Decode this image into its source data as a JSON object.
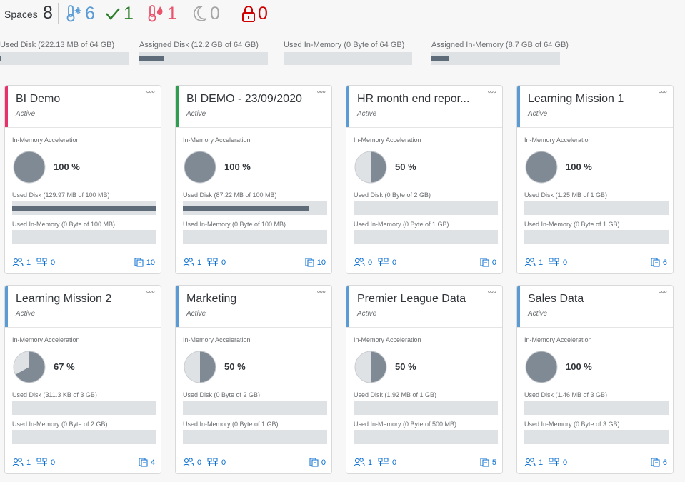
{
  "header": {
    "spaces_label": "Spaces",
    "spaces_count": "8",
    "stats": [
      {
        "icon": "cold-space-icon",
        "value": "6",
        "color": "#5b9bd5"
      },
      {
        "icon": "checkmark-icon",
        "value": "1",
        "color": "#2b7d2b"
      },
      {
        "icon": "hot-space-icon",
        "value": "1",
        "color": "#e9536b"
      },
      {
        "icon": "moon-icon",
        "value": "0",
        "color": "#a6a6a6"
      },
      {
        "icon": "lock-icon",
        "value": "0",
        "color": "#d00000"
      }
    ]
  },
  "summary": {
    "used_disk": "Used Disk (222.13 MB of 64 GB)",
    "used_disk_fraction": 0.003,
    "assigned_disk": "Assigned Disk (12.2 GB of 64 GB)",
    "assigned_disk_fraction": 0.19,
    "used_in_memory": "Used In-Memory (0 Byte of 64 GB)",
    "used_in_memory_fraction": 0,
    "assigned_in_memory": "Assigned In-Memory (8.7 GB of 64 GB)",
    "assigned_in_memory_fraction": 0.136
  },
  "labels": {
    "in_memory_acceleration": "In-Memory Acceleration"
  },
  "cards": [
    {
      "title": "BI Demo",
      "status": "Active",
      "accent": "#e9306b",
      "percent": "100 %",
      "fraction": 1.0,
      "used_disk": "Used Disk (129.97 MB of 100 MB)",
      "disk_fraction": 1.0,
      "used_memory": "Used In-Memory (0 Byte of 100 MB)",
      "memory_fraction": 0,
      "users": "1",
      "connections": "0",
      "objects": "10"
    },
    {
      "title": "BI DEMO - 23/09/2020",
      "status": "Active",
      "accent": "#2e9d4f",
      "percent": "100 %",
      "fraction": 1.0,
      "used_disk": "Used Disk (87.22 MB of 100 MB)",
      "disk_fraction": 0.872,
      "used_memory": "Used In-Memory (0 Byte of 100 MB)",
      "memory_fraction": 0,
      "users": "1",
      "connections": "0",
      "objects": "10"
    },
    {
      "title": "HR month end repor...",
      "status": "Active",
      "accent": "#5b9bd5",
      "percent": "50 %",
      "fraction": 0.5,
      "used_disk": "Used Disk (0 Byte of 2 GB)",
      "disk_fraction": 0,
      "used_memory": "Used In-Memory (0 Byte of 1 GB)",
      "memory_fraction": 0,
      "users": "0",
      "connections": "0",
      "objects": "0"
    },
    {
      "title": "Learning Mission 1",
      "status": "Active",
      "accent": "#5b9bd5",
      "percent": "100 %",
      "fraction": 1.0,
      "used_disk": "Used Disk (1.25 MB of 1 GB)",
      "disk_fraction": 0,
      "used_memory": "Used In-Memory (0 Byte of 1 GB)",
      "memory_fraction": 0,
      "users": "1",
      "connections": "0",
      "objects": "6"
    },
    {
      "title": "Learning Mission 2",
      "status": "Active",
      "accent": "#5b9bd5",
      "percent": "67 %",
      "fraction": 0.67,
      "used_disk": "Used Disk (311.3 KB of 3 GB)",
      "disk_fraction": 0,
      "used_memory": "Used In-Memory (0 Byte of 2 GB)",
      "memory_fraction": 0,
      "users": "1",
      "connections": "0",
      "objects": "4"
    },
    {
      "title": "Marketing",
      "status": "Active",
      "accent": "#5b9bd5",
      "percent": "50 %",
      "fraction": 0.5,
      "used_disk": "Used Disk (0 Byte of 2 GB)",
      "disk_fraction": 0,
      "used_memory": "Used In-Memory (0 Byte of 1 GB)",
      "memory_fraction": 0,
      "users": "0",
      "connections": "0",
      "objects": "0"
    },
    {
      "title": "Premier League Data",
      "status": "Active",
      "accent": "#5b9bd5",
      "percent": "50 %",
      "fraction": 0.5,
      "used_disk": "Used Disk (1.92 MB of 1 GB)",
      "disk_fraction": 0,
      "used_memory": "Used In-Memory (0 Byte of 500 MB)",
      "memory_fraction": 0,
      "users": "1",
      "connections": "0",
      "objects": "5"
    },
    {
      "title": "Sales Data",
      "status": "Active",
      "accent": "#5b9bd5",
      "percent": "100 %",
      "fraction": 1.0,
      "used_disk": "Used Disk (1.46 MB of 3 GB)",
      "disk_fraction": 0,
      "used_memory": "Used In-Memory (0 Byte of 3 GB)",
      "memory_fraction": 0,
      "users": "1",
      "connections": "0",
      "objects": "6"
    }
  ]
}
